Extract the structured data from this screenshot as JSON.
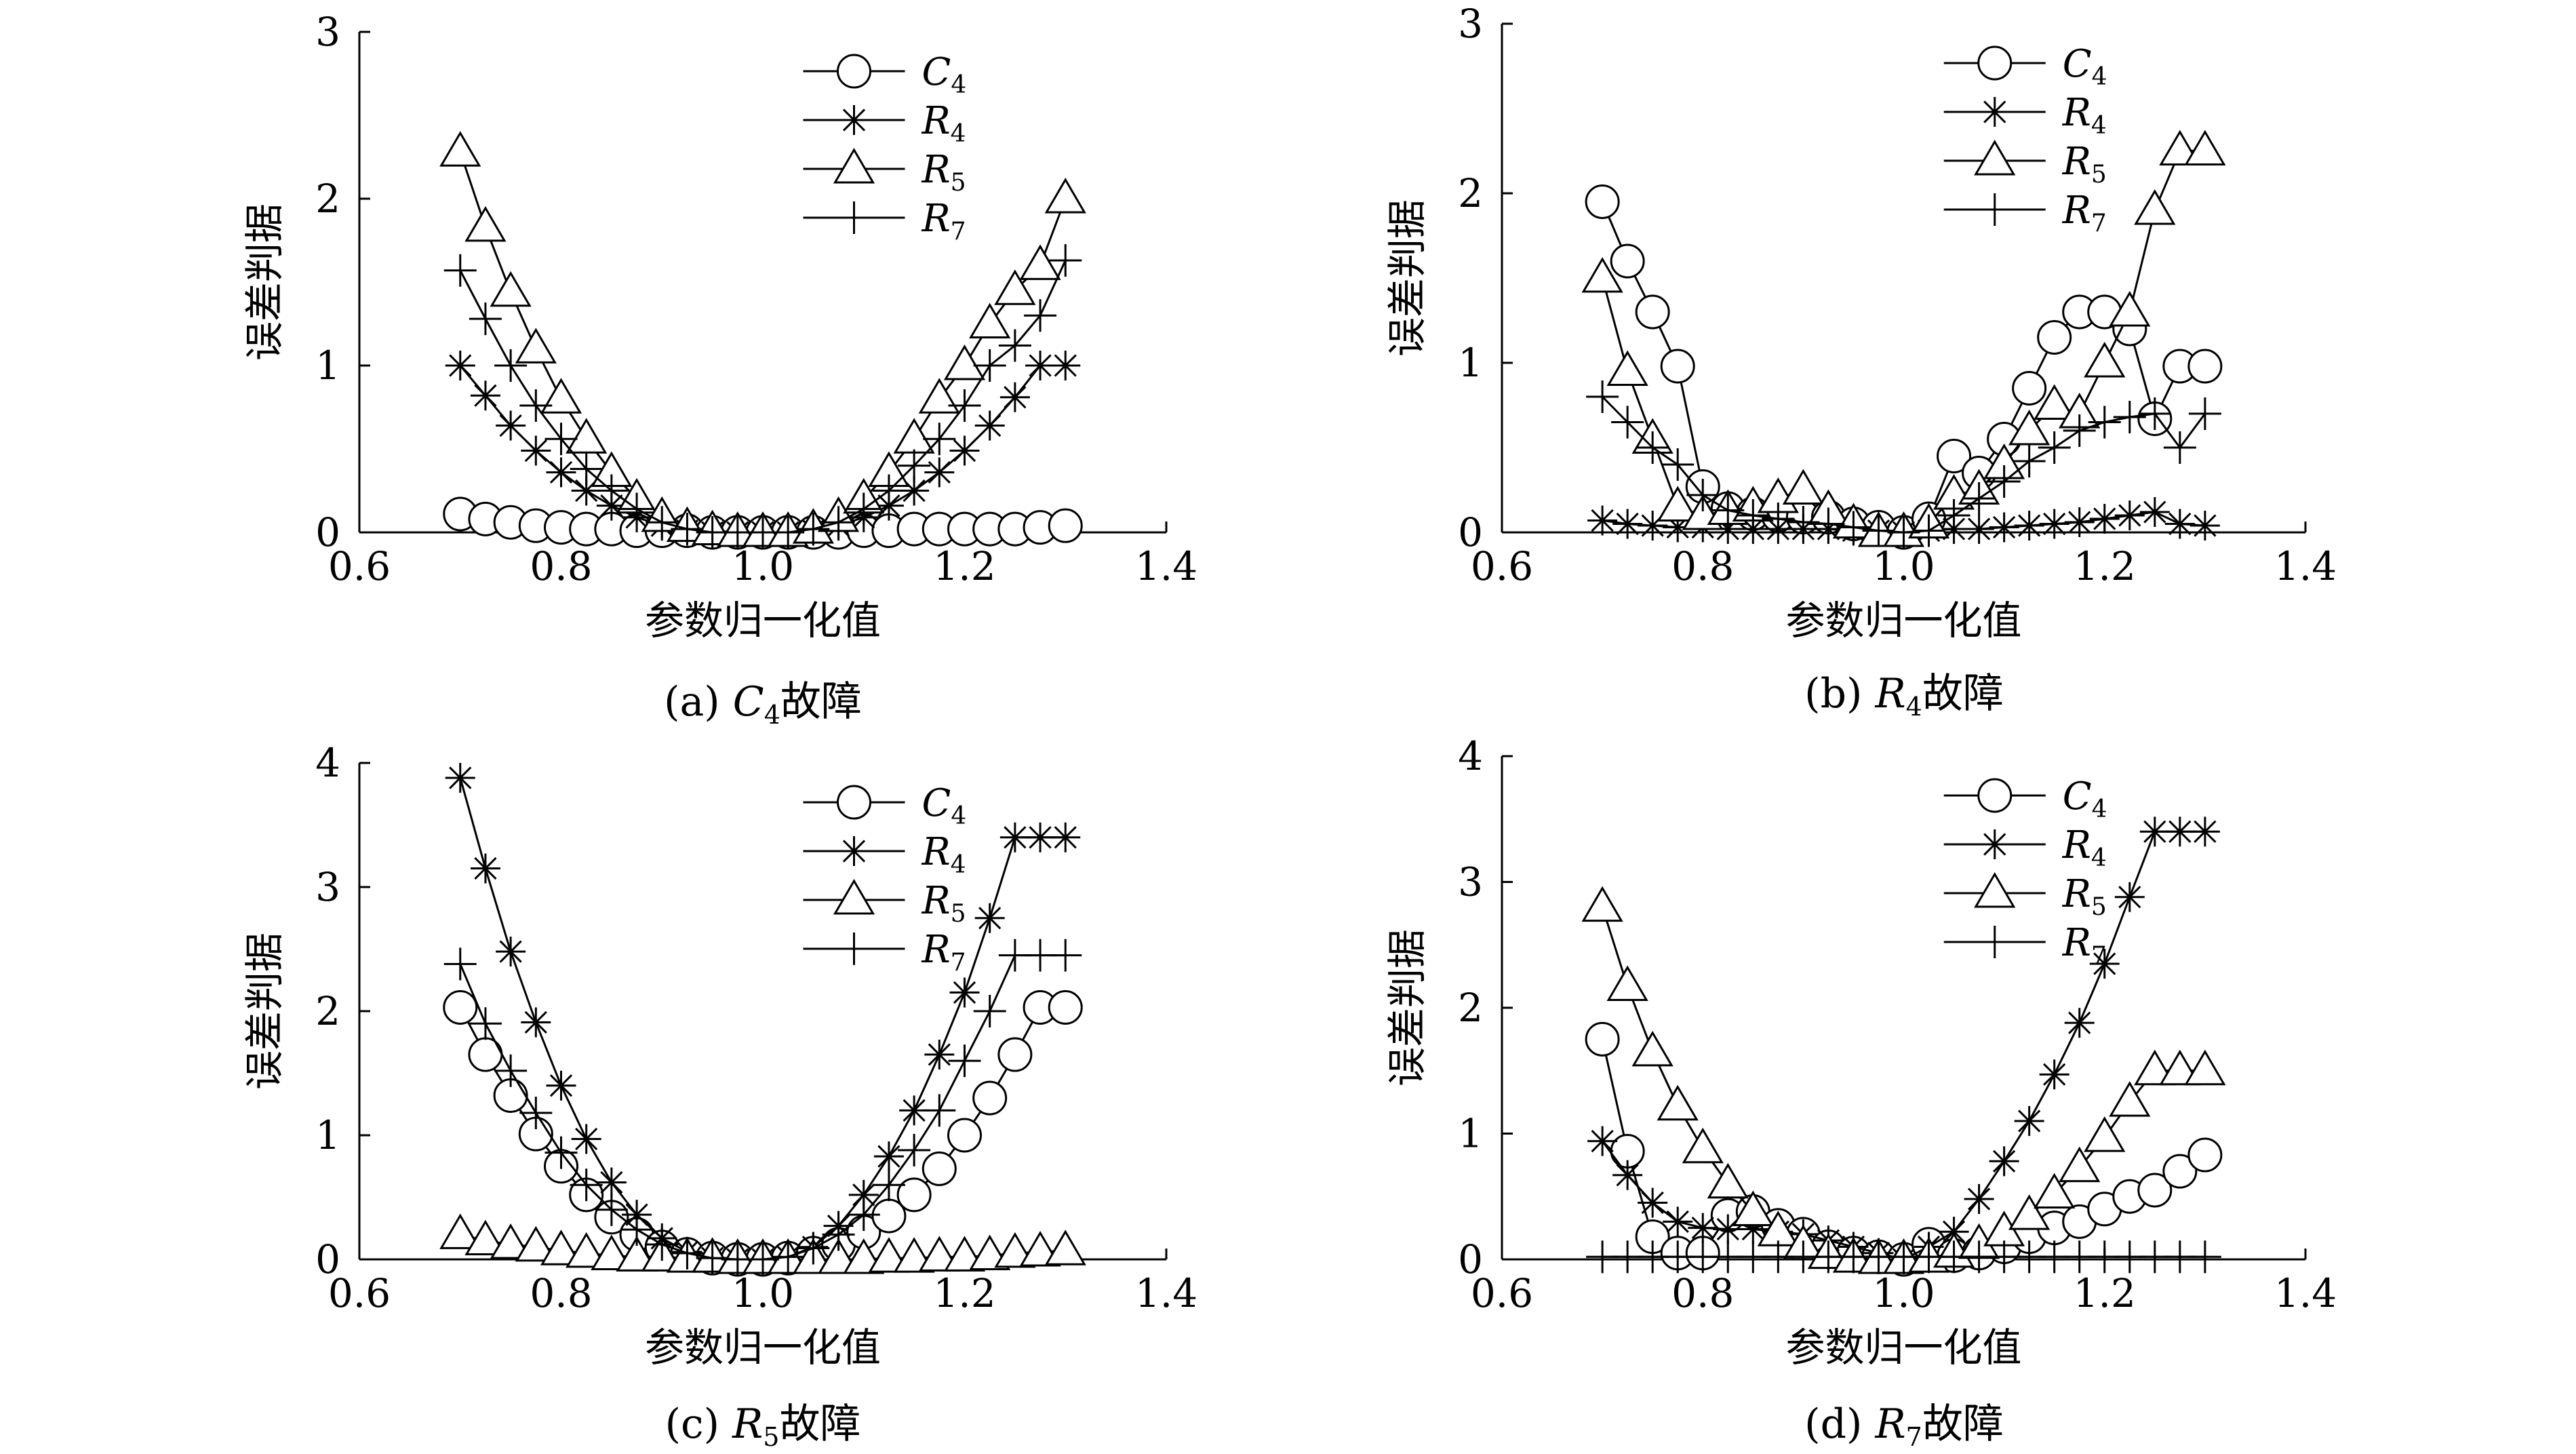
{
  "chart_data": [
    {
      "type": "line",
      "caption_prefix": "(a) ",
      "caption_var": "C",
      "caption_sub": "4",
      "caption_suffix": "故障",
      "xlabel": "参数归一化值",
      "ylabel": "误差判据",
      "xlim": [
        0.6,
        1.4
      ],
      "ylim": [
        0,
        3
      ],
      "xticks": [
        "0.6",
        "0.8",
        "1.0",
        "1.2",
        "1.4"
      ],
      "yticks": [
        "0",
        "1",
        "2",
        "3"
      ],
      "legend_position": "top-right",
      "series": [
        {
          "name": "C4",
          "legend_main": "C",
          "legend_sub": "4",
          "marker": "circle",
          "x": [
            0.7,
            0.725,
            0.75,
            0.775,
            0.8,
            0.825,
            0.85,
            0.875,
            0.9,
            0.925,
            0.95,
            0.975,
            1.0,
            1.025,
            1.05,
            1.075,
            1.1,
            1.125,
            1.15,
            1.175,
            1.2,
            1.225,
            1.25,
            1.275,
            1.3
          ],
          "y": [
            0.11,
            0.08,
            0.06,
            0.04,
            0.03,
            0.02,
            0.02,
            0.01,
            0.01,
            0.01,
            0.0,
            0.0,
            0.0,
            0.0,
            0.0,
            0.0,
            0.01,
            0.01,
            0.02,
            0.02,
            0.02,
            0.02,
            0.02,
            0.03,
            0.04
          ]
        },
        {
          "name": "R4",
          "legend_main": "R",
          "legend_sub": "4",
          "marker": "star",
          "x": [
            0.7,
            0.725,
            0.75,
            0.775,
            0.8,
            0.825,
            0.85,
            0.875,
            0.9,
            0.925,
            0.95,
            0.975,
            1.0,
            1.025,
            1.05,
            1.075,
            1.1,
            1.125,
            1.15,
            1.175,
            1.2,
            1.225,
            1.25,
            1.275,
            1.3
          ],
          "y": [
            1.0,
            0.82,
            0.64,
            0.49,
            0.36,
            0.25,
            0.16,
            0.09,
            0.04,
            0.01,
            0.0,
            0.0,
            0.0,
            0.0,
            0.01,
            0.04,
            0.09,
            0.16,
            0.25,
            0.36,
            0.49,
            0.64,
            0.81,
            1.0,
            1.0
          ]
        },
        {
          "name": "R5",
          "legend_main": "R",
          "legend_sub": "5",
          "marker": "triangle",
          "x": [
            0.7,
            0.725,
            0.75,
            0.775,
            0.8,
            0.825,
            0.85,
            0.875,
            0.9,
            0.925,
            0.95,
            0.975,
            1.0,
            1.025,
            1.05,
            1.075,
            1.1,
            1.125,
            1.15,
            1.175,
            1.2,
            1.225,
            1.25,
            1.275,
            1.3
          ],
          "y": [
            2.28,
            1.83,
            1.44,
            1.1,
            0.8,
            0.56,
            0.36,
            0.2,
            0.09,
            0.03,
            0.01,
            0.0,
            0.0,
            0.0,
            0.02,
            0.09,
            0.2,
            0.36,
            0.56,
            0.8,
            1.0,
            1.25,
            1.45,
            1.6,
            2.0
          ]
        },
        {
          "name": "R7",
          "legend_main": "R",
          "legend_sub": "7",
          "marker": "plus",
          "x": [
            0.7,
            0.725,
            0.75,
            0.775,
            0.8,
            0.825,
            0.85,
            0.875,
            0.9,
            0.925,
            0.95,
            0.975,
            1.0,
            1.025,
            1.05,
            1.075,
            1.1,
            1.125,
            1.15,
            1.175,
            1.2,
            1.225,
            1.25,
            1.275,
            1.3
          ],
          "y": [
            1.57,
            1.28,
            1.0,
            0.76,
            0.56,
            0.38,
            0.25,
            0.14,
            0.06,
            0.02,
            0.0,
            0.0,
            0.0,
            0.0,
            0.02,
            0.06,
            0.14,
            0.25,
            0.4,
            0.56,
            0.76,
            1.0,
            1.12,
            1.3,
            1.63
          ]
        }
      ]
    },
    {
      "type": "line",
      "caption_prefix": "(b) ",
      "caption_var": "R",
      "caption_sub": "4",
      "caption_suffix": "故障",
      "xlabel": "参数归一化值",
      "ylabel": "误差判据",
      "xlim": [
        0.6,
        1.4
      ],
      "ylim": [
        0,
        3
      ],
      "xticks": [
        "0.6",
        "0.8",
        "1.0",
        "1.2",
        "1.4"
      ],
      "yticks": [
        "0",
        "1",
        "2",
        "3"
      ],
      "legend_position": "top-right",
      "series": [
        {
          "name": "C4",
          "legend_main": "C",
          "legend_sub": "4",
          "marker": "circle",
          "x": [
            0.7,
            0.725,
            0.75,
            0.775,
            0.8,
            0.825,
            0.85,
            0.875,
            0.9,
            0.925,
            0.95,
            0.975,
            1.0,
            1.025,
            1.05,
            1.075,
            1.1,
            1.125,
            1.15,
            1.175,
            1.2,
            1.225,
            1.25,
            1.275,
            1.3
          ],
          "y": [
            1.95,
            1.6,
            1.3,
            0.98,
            0.27,
            0.14,
            0.11,
            0.1,
            0.09,
            0.09,
            0.05,
            0.03,
            0.0,
            0.08,
            0.45,
            0.35,
            0.55,
            0.85,
            1.15,
            1.3,
            1.3,
            1.2,
            0.67,
            0.98,
            0.98
          ]
        },
        {
          "name": "R4",
          "legend_main": "R",
          "legend_sub": "4",
          "marker": "star",
          "x": [
            0.7,
            0.725,
            0.75,
            0.775,
            0.8,
            0.825,
            0.85,
            0.875,
            0.9,
            0.925,
            0.95,
            0.975,
            1.0,
            1.025,
            1.05,
            1.075,
            1.1,
            1.125,
            1.15,
            1.175,
            1.2,
            1.225,
            1.25,
            1.275,
            1.3
          ],
          "y": [
            0.07,
            0.05,
            0.04,
            0.03,
            0.03,
            0.02,
            0.02,
            0.02,
            0.02,
            0.02,
            0.01,
            0.01,
            0.0,
            0.01,
            0.02,
            0.02,
            0.03,
            0.04,
            0.05,
            0.06,
            0.08,
            0.1,
            0.12,
            0.05,
            0.04
          ]
        },
        {
          "name": "R5",
          "legend_main": "R",
          "legend_sub": "5",
          "marker": "triangle",
          "x": [
            0.7,
            0.725,
            0.75,
            0.775,
            0.8,
            0.825,
            0.85,
            0.875,
            0.9,
            0.925,
            0.95,
            0.975,
            1.0,
            1.025,
            1.05,
            1.075,
            1.1,
            1.125,
            1.15,
            1.175,
            1.2,
            1.225,
            1.25,
            1.275,
            1.3
          ],
          "y": [
            1.5,
            0.95,
            0.55,
            0.15,
            0.1,
            0.13,
            0.15,
            0.2,
            0.25,
            0.13,
            0.05,
            0.0,
            0.0,
            0.05,
            0.22,
            0.25,
            0.4,
            0.6,
            0.75,
            0.7,
            1.0,
            1.3,
            1.9,
            2.25,
            2.25
          ]
        },
        {
          "name": "R7",
          "legend_main": "R",
          "legend_sub": "7",
          "marker": "plus",
          "x": [
            0.7,
            0.725,
            0.75,
            0.775,
            0.8,
            0.825,
            0.85,
            0.875,
            0.9,
            0.925,
            0.95,
            0.975,
            1.0,
            1.025,
            1.05,
            1.075,
            1.1,
            1.125,
            1.15,
            1.175,
            1.2,
            1.225,
            1.25,
            1.275,
            1.3
          ],
          "y": [
            0.8,
            0.65,
            0.5,
            0.4,
            0.22,
            0.13,
            0.1,
            0.08,
            0.06,
            0.05,
            0.03,
            0.01,
            0.0,
            0.01,
            0.1,
            0.2,
            0.3,
            0.42,
            0.5,
            0.6,
            0.65,
            0.68,
            0.7,
            0.5,
            0.7
          ]
        }
      ]
    },
    {
      "type": "line",
      "caption_prefix": "(c) ",
      "caption_var": "R",
      "caption_sub": "5",
      "caption_suffix": "故障",
      "xlabel": "参数归一化值",
      "ylabel": "误差判据",
      "xlim": [
        0.6,
        1.4
      ],
      "ylim": [
        0,
        4
      ],
      "xticks": [
        "0.6",
        "0.8",
        "1.0",
        "1.2",
        "1.4"
      ],
      "yticks": [
        "0",
        "1",
        "2",
        "3",
        "4"
      ],
      "legend_position": "top-right",
      "series": [
        {
          "name": "C4",
          "legend_main": "C",
          "legend_sub": "4",
          "marker": "circle",
          "x": [
            0.7,
            0.725,
            0.75,
            0.775,
            0.8,
            0.825,
            0.85,
            0.875,
            0.9,
            0.925,
            0.95,
            0.975,
            1.0,
            1.025,
            1.05,
            1.075,
            1.1,
            1.125,
            1.15,
            1.175,
            1.2,
            1.225,
            1.25,
            1.275,
            1.3
          ],
          "y": [
            2.03,
            1.65,
            1.32,
            1.01,
            0.75,
            0.52,
            0.34,
            0.2,
            0.1,
            0.04,
            0.01,
            0.0,
            0.0,
            0.01,
            0.05,
            0.12,
            0.22,
            0.35,
            0.52,
            0.73,
            1.0,
            1.3,
            1.65,
            2.03,
            2.03
          ]
        },
        {
          "name": "R4",
          "legend_main": "R",
          "legend_sub": "4",
          "marker": "star",
          "x": [
            0.7,
            0.725,
            0.75,
            0.775,
            0.8,
            0.825,
            0.85,
            0.875,
            0.9,
            0.925,
            0.95,
            0.975,
            1.0,
            1.025,
            1.05,
            1.075,
            1.1,
            1.125,
            1.15,
            1.175,
            1.2,
            1.225,
            1.25,
            1.275,
            1.3
          ],
          "y": [
            3.88,
            3.15,
            2.48,
            1.91,
            1.4,
            0.97,
            0.62,
            0.36,
            0.17,
            0.06,
            0.01,
            0.0,
            0.0,
            0.02,
            0.1,
            0.27,
            0.52,
            0.83,
            1.2,
            1.65,
            2.15,
            2.75,
            3.4,
            3.4,
            3.4
          ]
        },
        {
          "name": "R5",
          "legend_main": "R",
          "legend_sub": "5",
          "marker": "triangle",
          "x": [
            0.7,
            0.725,
            0.75,
            0.775,
            0.8,
            0.825,
            0.85,
            0.875,
            0.9,
            0.925,
            0.95,
            0.975,
            1.0,
            1.025,
            1.05,
            1.075,
            1.1,
            1.125,
            1.15,
            1.175,
            1.2,
            1.225,
            1.25,
            1.275,
            1.3
          ],
          "y": [
            0.2,
            0.15,
            0.12,
            0.1,
            0.07,
            0.05,
            0.03,
            0.02,
            0.02,
            0.01,
            0.01,
            0.0,
            0.0,
            0.0,
            0.0,
            0.0,
            0.0,
            0.01,
            0.01,
            0.02,
            0.02,
            0.03,
            0.05,
            0.06,
            0.07
          ]
        },
        {
          "name": "R7",
          "legend_main": "R",
          "legend_sub": "7",
          "marker": "plus",
          "x": [
            0.7,
            0.725,
            0.75,
            0.775,
            0.8,
            0.825,
            0.85,
            0.875,
            0.9,
            0.925,
            0.95,
            0.975,
            1.0,
            1.025,
            1.05,
            1.075,
            1.1,
            1.125,
            1.15,
            1.175,
            1.2,
            1.225,
            1.25,
            1.275,
            1.3
          ],
          "y": [
            2.38,
            1.9,
            1.52,
            1.18,
            0.86,
            0.6,
            0.4,
            0.24,
            0.12,
            0.05,
            0.01,
            0.0,
            0.0,
            0.02,
            0.09,
            0.2,
            0.36,
            0.6,
            0.88,
            1.2,
            1.6,
            2.0,
            2.45,
            2.45,
            2.45
          ]
        }
      ]
    },
    {
      "type": "line",
      "caption_prefix": "(d) ",
      "caption_var": "R",
      "caption_sub": "7",
      "caption_suffix": "故障",
      "xlabel": "参数归一化值",
      "ylabel": "误差判据",
      "xlim": [
        0.6,
        1.4
      ],
      "ylim": [
        0,
        4
      ],
      "xticks": [
        "0.6",
        "0.8",
        "1.0",
        "1.2",
        "1.4"
      ],
      "yticks": [
        "0",
        "1",
        "2",
        "3",
        "4"
      ],
      "legend_position": "top-right",
      "series": [
        {
          "name": "C4",
          "legend_main": "C",
          "legend_sub": "4",
          "marker": "circle",
          "x": [
            0.7,
            0.725,
            0.75,
            0.775,
            0.8,
            0.825,
            0.85,
            0.875,
            0.9,
            0.925,
            0.95,
            0.975,
            1.0,
            1.025,
            1.05,
            1.075,
            1.1,
            1.125,
            1.15,
            1.175,
            1.2,
            1.225,
            1.25,
            1.275,
            1.3
          ],
          "y": [
            1.75,
            0.86,
            0.18,
            0.05,
            0.05,
            0.35,
            0.38,
            0.27,
            0.2,
            0.1,
            0.05,
            0.02,
            0.0,
            0.12,
            0.03,
            0.05,
            0.1,
            0.18,
            0.25,
            0.3,
            0.4,
            0.5,
            0.55,
            0.7,
            0.83
          ]
        },
        {
          "name": "R4",
          "legend_main": "R",
          "legend_sub": "4",
          "marker": "star",
          "x": [
            0.7,
            0.725,
            0.75,
            0.775,
            0.8,
            0.825,
            0.85,
            0.875,
            0.9,
            0.925,
            0.95,
            0.975,
            1.0,
            1.025,
            1.05,
            1.075,
            1.1,
            1.125,
            1.15,
            1.175,
            1.2,
            1.225,
            1.25,
            1.275,
            1.3
          ],
          "y": [
            0.94,
            0.67,
            0.45,
            0.3,
            0.25,
            0.24,
            0.24,
            0.22,
            0.2,
            0.15,
            0.1,
            0.05,
            0.0,
            0.1,
            0.22,
            0.48,
            0.78,
            1.1,
            1.47,
            1.88,
            2.35,
            2.88,
            3.4,
            3.4,
            3.4
          ]
        },
        {
          "name": "R5",
          "legend_main": "R",
          "legend_sub": "5",
          "marker": "triangle",
          "x": [
            0.7,
            0.725,
            0.75,
            0.775,
            0.8,
            0.825,
            0.85,
            0.875,
            0.9,
            0.925,
            0.95,
            0.975,
            1.0,
            1.025,
            1.05,
            1.075,
            1.1,
            1.125,
            1.15,
            1.175,
            1.2,
            1.225,
            1.25,
            1.275,
            1.3
          ],
          "y": [
            2.8,
            2.17,
            1.65,
            1.22,
            0.88,
            0.6,
            0.38,
            0.22,
            0.11,
            0.04,
            0.01,
            0.0,
            0.0,
            0.01,
            0.05,
            0.12,
            0.22,
            0.35,
            0.52,
            0.73,
            0.97,
            1.25,
            1.5,
            1.5,
            1.5
          ]
        },
        {
          "name": "R7",
          "legend_main": "R",
          "legend_sub": "7",
          "marker": "plus",
          "x": [
            0.7,
            0.725,
            0.75,
            0.775,
            0.8,
            0.825,
            0.85,
            0.875,
            0.9,
            0.925,
            0.95,
            0.975,
            1.0,
            1.025,
            1.05,
            1.075,
            1.1,
            1.125,
            1.15,
            1.175,
            1.2,
            1.225,
            1.25,
            1.275,
            1.3
          ],
          "y": [
            0.02,
            0.02,
            0.02,
            0.02,
            0.02,
            0.02,
            0.02,
            0.02,
            0.02,
            0.02,
            0.02,
            0.02,
            0.02,
            0.02,
            0.02,
            0.02,
            0.02,
            0.02,
            0.02,
            0.02,
            0.02,
            0.02,
            0.02,
            0.02,
            0.02
          ]
        }
      ]
    }
  ]
}
